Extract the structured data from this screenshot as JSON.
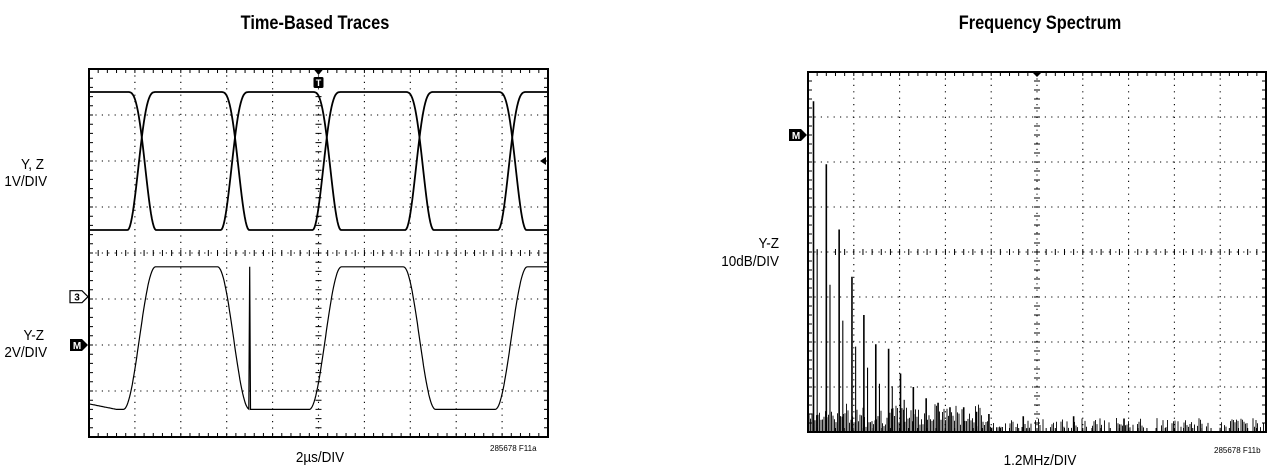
{
  "chart_data": [
    {
      "type": "line",
      "title": "Time-Based Traces",
      "xlabel": "2µs/DIV",
      "figure_id": "285678 F11a",
      "grid": true,
      "x_divisions": 10,
      "y_divisions": 8,
      "trigger_marker": "T",
      "channel_markers": [
        "3",
        "M"
      ],
      "series": [
        {
          "ylabel": [
            "Y, Z",
            "1V/DIV"
          ],
          "units_per_div": "1V",
          "style": "complementary square waves",
          "high_div": 7.5,
          "low_div": 4.5,
          "crossover_time_div": [
            1.15,
            3.18,
            5.18,
            7.2,
            9.22
          ]
        },
        {
          "ylabel": [
            "Y-Z",
            "2V/DIV"
          ],
          "units_per_div": "2V",
          "style": "square wave",
          "high_div": 3.7,
          "low_div": 0.6,
          "rise_time_div": [
            1.1,
            5.15,
            9.2
          ],
          "fall_time_div": [
            3.15,
            7.2
          ]
        }
      ]
    },
    {
      "type": "bar",
      "title": "Frequency Spectrum",
      "xlabel": "1.2MHz/DIV",
      "figure_id": "285678 F11b",
      "grid": true,
      "x_divisions": 10,
      "y_divisions": 8,
      "channel_markers": [
        "M"
      ],
      "ylabel": [
        "Y-Z",
        "10dB/DIV"
      ],
      "noise_floor_div": 0.25,
      "harmonics": [
        {
          "x_div": 0.12,
          "level_div": 7.35
        },
        {
          "x_div": 0.4,
          "level_div": 5.95
        },
        {
          "x_div": 0.68,
          "level_div": 4.5
        },
        {
          "x_div": 0.96,
          "level_div": 3.45
        },
        {
          "x_div": 1.22,
          "level_div": 2.6
        },
        {
          "x_div": 1.48,
          "level_div": 1.95
        },
        {
          "x_div": 1.76,
          "level_div": 1.85
        },
        {
          "x_div": 2.02,
          "level_div": 1.3
        },
        {
          "x_div": 2.3,
          "level_div": 1.0
        },
        {
          "x_div": 2.58,
          "level_div": 0.75
        },
        {
          "x_div": 2.84,
          "level_div": 0.65
        },
        {
          "x_div": 3.1,
          "level_div": 0.55
        },
        {
          "x_div": 3.4,
          "level_div": 0.55
        },
        {
          "x_div": 3.68,
          "level_div": 0.45
        },
        {
          "x_div": 3.95,
          "level_div": 0.4
        },
        {
          "x_div": 4.7,
          "level_div": 0.35
        },
        {
          "x_div": 5.8,
          "level_div": 0.35
        },
        {
          "x_div": 6.9,
          "level_div": 0.3
        }
      ]
    }
  ]
}
